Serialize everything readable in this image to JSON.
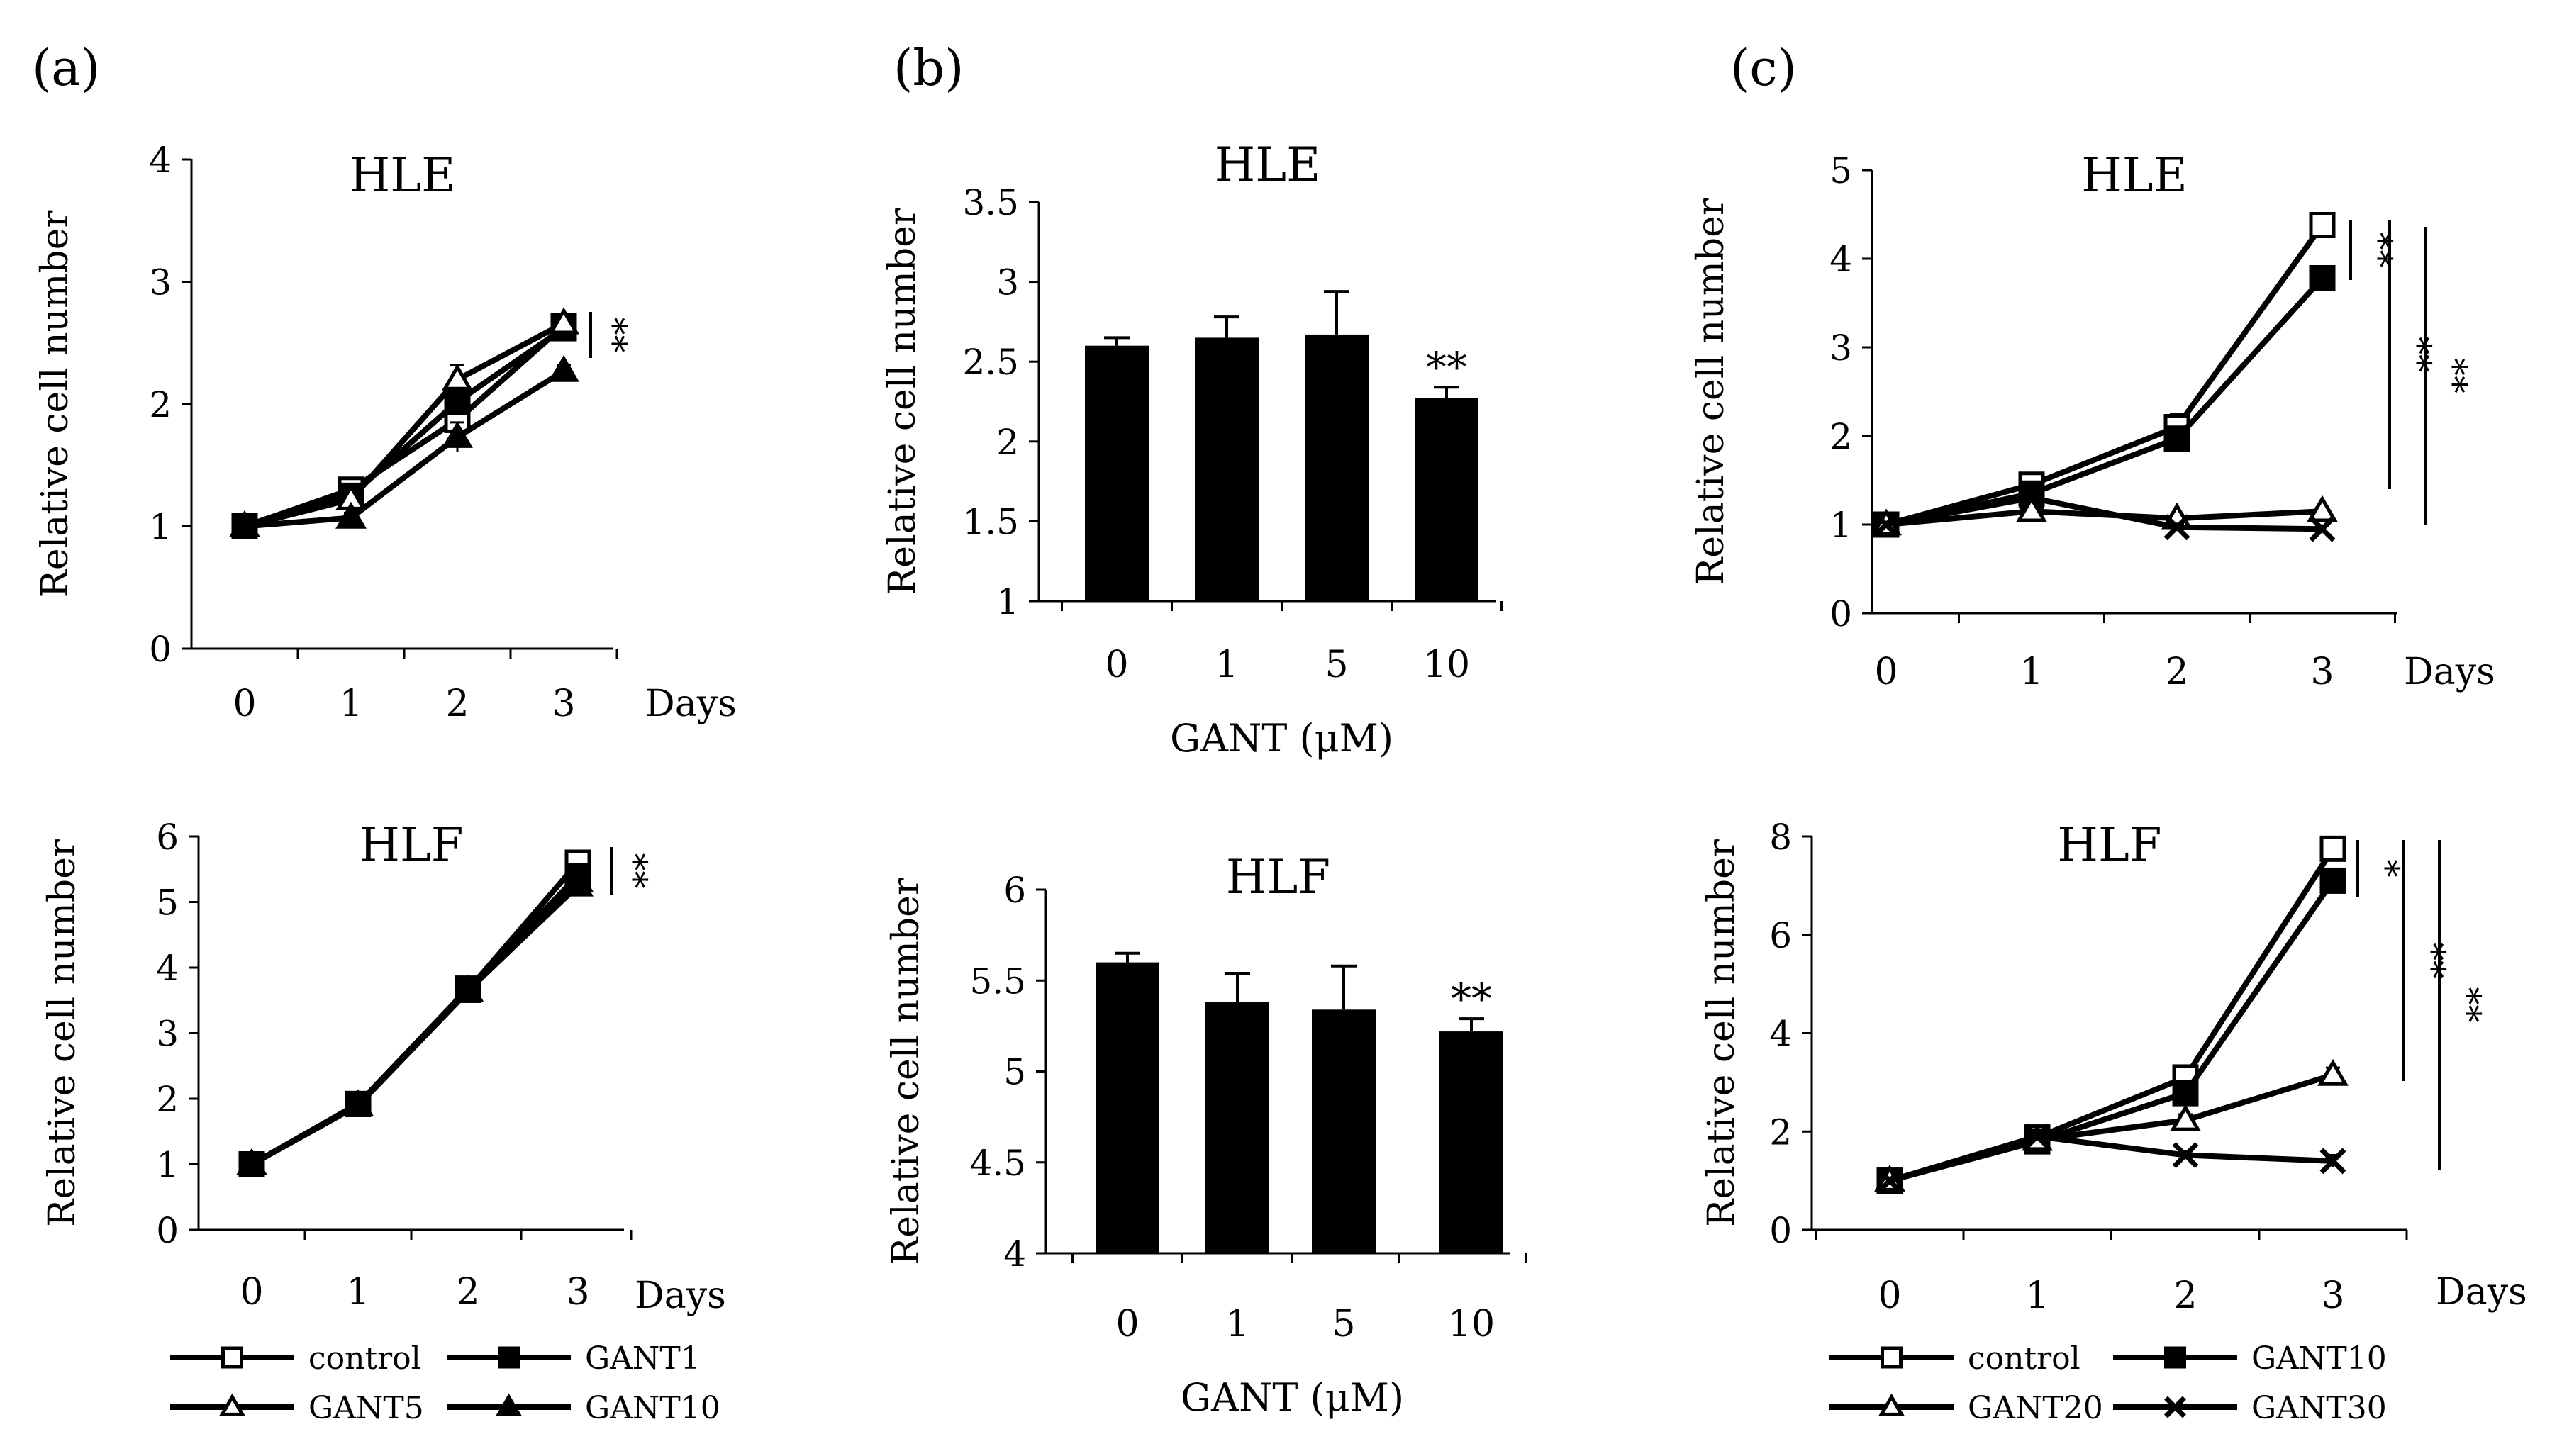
{
  "panel_labels": [
    "(a)",
    "(b)",
    "(c)"
  ],
  "chart_data": [
    {
      "id": "a-hle",
      "panel": "(a)",
      "type": "line",
      "title": "HLE",
      "ylabel": "Relative cell number",
      "xlabel_right": "Days",
      "categories": [
        "0",
        "1",
        "2",
        "3"
      ],
      "x": [
        0,
        1,
        2,
        3
      ],
      "ylim": [
        0,
        4
      ],
      "yticks": [
        "0",
        "1",
        "2",
        "3",
        "4"
      ],
      "series": [
        {
          "name": "control",
          "marker": "square-open",
          "values": [
            1.0,
            1.3,
            1.87,
            2.64
          ],
          "err": [
            0.02,
            0.05,
            0.1,
            0.06
          ]
        },
        {
          "name": "GANT1",
          "marker": "square-filled",
          "values": [
            1.0,
            1.25,
            2.02,
            2.62
          ],
          "err": [
            0.02,
            0.05,
            0.1,
            0.06
          ]
        },
        {
          "name": "GANT5",
          "marker": "triangle-open",
          "values": [
            1.0,
            1.22,
            2.2,
            2.66
          ],
          "err": [
            0.02,
            0.05,
            0.12,
            0.06
          ]
        },
        {
          "name": "GANT10",
          "marker": "triangle-filled",
          "values": [
            1.0,
            1.07,
            1.73,
            2.27
          ],
          "err": [
            0.02,
            0.04,
            0.12,
            0.05
          ]
        }
      ],
      "significance": [
        "**"
      ]
    },
    {
      "id": "a-hlf",
      "panel": "(a)",
      "type": "line",
      "title": "HLF",
      "ylabel": "Relative cell number",
      "xlabel_right": "Days",
      "categories": [
        "0",
        "1",
        "2",
        "3"
      ],
      "x": [
        0,
        1,
        2,
        3
      ],
      "ylim": [
        0,
        6
      ],
      "yticks": [
        "0",
        "1",
        "2",
        "3",
        "4",
        "5",
        "6"
      ],
      "series": [
        {
          "name": "control",
          "marker": "square-open",
          "values": [
            1.0,
            1.92,
            3.66,
            5.6
          ],
          "err": [
            0.03,
            0.05,
            0.08,
            0.06
          ]
        },
        {
          "name": "GANT1",
          "marker": "square-filled",
          "values": [
            1.0,
            1.92,
            3.68,
            5.4
          ],
          "err": [
            0.03,
            0.05,
            0.08,
            0.06
          ]
        },
        {
          "name": "GANT5",
          "marker": "triangle-open",
          "values": [
            1.0,
            1.9,
            3.64,
            5.32
          ],
          "err": [
            0.03,
            0.05,
            0.08,
            0.06
          ]
        },
        {
          "name": "GANT10",
          "marker": "triangle-filled",
          "values": [
            1.0,
            1.9,
            3.65,
            5.25
          ],
          "err": [
            0.03,
            0.05,
            0.08,
            0.06
          ]
        }
      ],
      "significance": [
        "**"
      ]
    },
    {
      "id": "b-hle",
      "panel": "(b)",
      "type": "bar",
      "title": "HLE",
      "ylabel": "Relative cell number",
      "xlabel": "GANT (μM)",
      "categories": [
        "0",
        "1",
        "5",
        "10"
      ],
      "values": [
        2.6,
        2.65,
        2.67,
        2.27
      ],
      "err": [
        0.05,
        0.13,
        0.27,
        0.07
      ],
      "ylim": [
        1,
        3.5
      ],
      "yticks": [
        "1",
        "1.5",
        "2",
        "2.5",
        "3",
        "3.5"
      ],
      "significance": [
        {
          "category": "10",
          "label": "**"
        }
      ]
    },
    {
      "id": "b-hlf",
      "panel": "(b)",
      "type": "bar",
      "title": "HLF",
      "ylabel": "Relative cell number",
      "xlabel": "GANT (μM)",
      "categories": [
        "0",
        "1",
        "5",
        "10"
      ],
      "values": [
        5.6,
        5.38,
        5.34,
        5.22
      ],
      "err": [
        0.05,
        0.16,
        0.24,
        0.07
      ],
      "ylim": [
        4,
        6
      ],
      "yticks": [
        "4",
        "4.5",
        "5",
        "5.5",
        "6"
      ],
      "significance": [
        {
          "category": "10",
          "label": "**"
        }
      ]
    },
    {
      "id": "c-hle",
      "panel": "(c)",
      "type": "line",
      "title": "HLE",
      "ylabel": "Relative cell number",
      "xlabel_right": "Days",
      "categories": [
        "0",
        "1",
        "2",
        "3"
      ],
      "x": [
        0,
        1,
        2,
        3
      ],
      "ylim": [
        0,
        5
      ],
      "yticks": [
        "0",
        "1",
        "2",
        "3",
        "4",
        "5"
      ],
      "series": [
        {
          "name": "control",
          "marker": "square-open",
          "values": [
            1.0,
            1.45,
            2.1,
            4.38
          ],
          "err": [
            0.02,
            0.06,
            0.15,
            0.06
          ]
        },
        {
          "name": "GANT10",
          "marker": "square-filled",
          "values": [
            1.0,
            1.35,
            1.97,
            3.78
          ],
          "err": [
            0.02,
            0.06,
            0.1,
            0.06
          ]
        },
        {
          "name": "GANT20",
          "marker": "triangle-open",
          "values": [
            1.0,
            1.15,
            1.07,
            1.15
          ],
          "err": [
            0.02,
            0.04,
            0.04,
            0.04
          ]
        },
        {
          "name": "GANT30",
          "marker": "x",
          "values": [
            1.0,
            1.3,
            0.97,
            0.95
          ],
          "err": [
            0.02,
            0.04,
            0.04,
            0.04
          ]
        }
      ],
      "significance": [
        "**",
        "**",
        "**"
      ]
    },
    {
      "id": "c-hlf",
      "panel": "(c)",
      "type": "line",
      "title": "HLF",
      "ylabel": "Relative cell number",
      "xlabel_right": "Days",
      "categories": [
        "0",
        "1",
        "2",
        "3"
      ],
      "x": [
        0,
        1,
        2,
        3
      ],
      "ylim": [
        0,
        8
      ],
      "yticks": [
        "0",
        "2",
        "4",
        "6",
        "8"
      ],
      "series": [
        {
          "name": "control",
          "marker": "square-open",
          "values": [
            1.0,
            1.88,
            3.1,
            7.75
          ],
          "err": [
            0.03,
            0.08,
            0.15,
            0.1
          ]
        },
        {
          "name": "GANT10",
          "marker": "square-filled",
          "values": [
            1.0,
            1.8,
            2.78,
            7.1
          ],
          "err": [
            0.03,
            0.08,
            0.15,
            0.1
          ]
        },
        {
          "name": "GANT20",
          "marker": "triangle-open",
          "values": [
            1.0,
            1.83,
            2.23,
            3.15
          ],
          "err": [
            0.03,
            0.08,
            0.12,
            0.15
          ]
        },
        {
          "name": "GANT30",
          "marker": "x",
          "values": [
            1.0,
            1.9,
            1.52,
            1.4
          ],
          "err": [
            0.03,
            0.08,
            0.08,
            0.12
          ]
        }
      ],
      "significance": [
        "*",
        "**",
        "**"
      ]
    }
  ],
  "legends": [
    {
      "id": "legend-a",
      "items": [
        {
          "name": "control",
          "marker": "square-open"
        },
        {
          "name": "GANT1",
          "marker": "square-filled"
        },
        {
          "name": "GANT5",
          "marker": "triangle-open"
        },
        {
          "name": "GANT10",
          "marker": "triangle-filled"
        }
      ]
    },
    {
      "id": "legend-c",
      "items": [
        {
          "name": "control",
          "marker": "square-open"
        },
        {
          "name": "GANT10",
          "marker": "square-filled"
        },
        {
          "name": "GANT20",
          "marker": "triangle-open"
        },
        {
          "name": "GANT30",
          "marker": "x"
        }
      ]
    }
  ]
}
